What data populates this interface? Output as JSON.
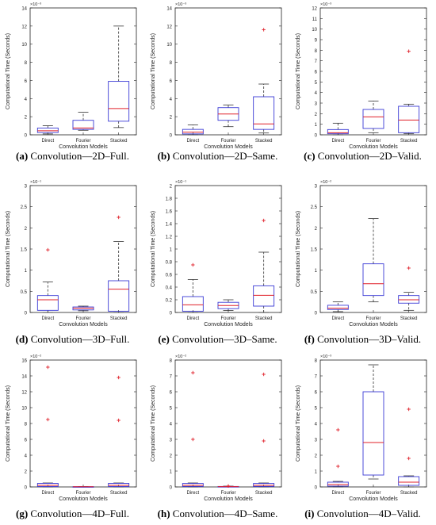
{
  "chart_data": [
    {
      "type": "box",
      "title": "",
      "caption_letter": "(a)",
      "caption_text": "Convolution—2D–Full.",
      "exponent_label": "×10⁻³",
      "xlabel": "Convolution Models",
      "ylabel": "Computational Time (Seconds)",
      "ylim": [
        0,
        14
      ],
      "yticks": [
        "0",
        "2",
        "4",
        "6",
        "8",
        "10",
        "12",
        "14"
      ],
      "categories": [
        "Direct",
        "Fourier",
        "Stacked"
      ],
      "boxes": [
        {
          "min": 0.1,
          "q1": 0.25,
          "median": 0.45,
          "q3": 0.75,
          "max": 1.0,
          "outliers": []
        },
        {
          "min": 0.5,
          "q1": 0.6,
          "median": 0.75,
          "q3": 1.6,
          "max": 2.5,
          "outliers": []
        },
        {
          "min": 0.8,
          "q1": 1.5,
          "median": 2.9,
          "q3": 5.9,
          "max": 12.0,
          "outliers": []
        }
      ]
    },
    {
      "type": "box",
      "title": "",
      "caption_letter": "(b)",
      "caption_text": "Convolution—2D–Same.",
      "exponent_label": "×10⁻³",
      "xlabel": "Convolution Models",
      "ylabel": "Computational Time (Seconds)",
      "ylim": [
        0,
        14
      ],
      "yticks": [
        "0",
        "2",
        "4",
        "6",
        "8",
        "10",
        "12",
        "14"
      ],
      "categories": [
        "Direct",
        "Fourier",
        "Stacked"
      ],
      "boxes": [
        {
          "min": 0.0,
          "q1": 0.1,
          "median": 0.3,
          "q3": 0.6,
          "max": 1.1,
          "outliers": []
        },
        {
          "min": 0.9,
          "q1": 1.6,
          "median": 2.3,
          "q3": 3.0,
          "max": 3.3,
          "outliers": []
        },
        {
          "min": 0.2,
          "q1": 0.6,
          "median": 1.2,
          "q3": 4.2,
          "max": 5.6,
          "outliers": [
            11.6
          ]
        }
      ]
    },
    {
      "type": "box",
      "title": "",
      "caption_letter": "(c)",
      "caption_text": "Convolution—2D–Valid.",
      "exponent_label": "×10⁻³",
      "xlabel": "Convolution Models",
      "ylabel": "Computational Time (Seconds)",
      "ylim": [
        0,
        12
      ],
      "yticks": [
        "0",
        "1",
        "2",
        "3",
        "4",
        "5",
        "6",
        "7",
        "8",
        "9",
        "10",
        "11",
        "12"
      ],
      "categories": [
        "Direct",
        "Fourier",
        "Stacked"
      ],
      "boxes": [
        {
          "min": 0.0,
          "q1": 0.1,
          "median": 0.2,
          "q3": 0.5,
          "max": 1.1,
          "outliers": []
        },
        {
          "min": 0.2,
          "q1": 0.6,
          "median": 1.7,
          "q3": 2.4,
          "max": 3.2,
          "outliers": []
        },
        {
          "min": 0.1,
          "q1": 0.2,
          "median": 1.4,
          "q3": 2.7,
          "max": 2.9,
          "outliers": [
            7.9
          ]
        }
      ]
    },
    {
      "type": "box",
      "title": "",
      "caption_letter": "(d)",
      "caption_text": "Convolution—3D–Full.",
      "exponent_label": "×10⁻¹",
      "xlabel": "Convolution Models",
      "ylabel": "Computational Time (Seconds)",
      "ylim": [
        0,
        3
      ],
      "yticks": [
        "0",
        "0.5",
        "1",
        "1.5",
        "2",
        "2.5",
        "3"
      ],
      "categories": [
        "Direct",
        "Fourier",
        "Stacked"
      ],
      "boxes": [
        {
          "min": 0.0,
          "q1": 0.05,
          "median": 0.3,
          "q3": 0.4,
          "max": 0.72,
          "outliers": [
            1.48
          ]
        },
        {
          "min": 0.04,
          "q1": 0.06,
          "median": 0.1,
          "q3": 0.13,
          "max": 0.15,
          "outliers": []
        },
        {
          "min": 0.0,
          "q1": 0.03,
          "median": 0.55,
          "q3": 0.75,
          "max": 1.68,
          "outliers": [
            2.25
          ]
        }
      ]
    },
    {
      "type": "box",
      "title": "",
      "caption_letter": "(e)",
      "caption_text": "Convolution—3D–Same.",
      "exponent_label": "×10⁻¹",
      "xlabel": "Convolution Models",
      "ylabel": "Computational Time (Seconds)",
      "ylim": [
        0,
        2
      ],
      "yticks": [
        "0",
        "0.2",
        "0.4",
        "0.6",
        "0.8",
        "1",
        "1.2",
        "1.4",
        "1.6",
        "1.8",
        "2"
      ],
      "categories": [
        "Direct",
        "Fourier",
        "Stacked"
      ],
      "boxes": [
        {
          "min": 0.0,
          "q1": 0.02,
          "median": 0.12,
          "q3": 0.25,
          "max": 0.52,
          "outliers": [
            0.75
          ]
        },
        {
          "min": 0.03,
          "q1": 0.06,
          "median": 0.11,
          "q3": 0.16,
          "max": 0.2,
          "outliers": []
        },
        {
          "min": 0.0,
          "q1": 0.1,
          "median": 0.27,
          "q3": 0.42,
          "max": 0.95,
          "outliers": [
            1.45
          ]
        }
      ]
    },
    {
      "type": "box",
      "title": "",
      "caption_letter": "(f)",
      "caption_text": "Convolution—3D–Valid.",
      "exponent_label": "×10⁻²",
      "xlabel": "Convolution Models",
      "ylabel": "Computational Time (Seconds)",
      "ylim": [
        0,
        3
      ],
      "yticks": [
        "0",
        "0.5",
        "1",
        "1.5",
        "2",
        "2.5",
        "3"
      ],
      "categories": [
        "Direct",
        "Fourier",
        "Stacked"
      ],
      "boxes": [
        {
          "min": 0.02,
          "q1": 0.07,
          "median": 0.1,
          "q3": 0.17,
          "max": 0.25,
          "outliers": []
        },
        {
          "min": 0.25,
          "q1": 0.4,
          "median": 0.68,
          "q3": 1.15,
          "max": 2.22,
          "outliers": []
        },
        {
          "min": 0.05,
          "q1": 0.22,
          "median": 0.3,
          "q3": 0.4,
          "max": 0.48,
          "outliers": [
            1.05
          ]
        }
      ]
    },
    {
      "type": "box",
      "title": "",
      "caption_letter": "(g)",
      "caption_text": "Convolution—4D–Full.",
      "exponent_label": "×10⁻²",
      "xlabel": "Convolution Models",
      "ylabel": "Computational Time (Seconds)",
      "ylim": [
        0,
        16
      ],
      "yticks": [
        "0",
        "2",
        "4",
        "6",
        "8",
        "10",
        "12",
        "14",
        "16"
      ],
      "categories": [
        "Direct",
        "Fourier",
        "Stacked"
      ],
      "boxes": [
        {
          "min": 0.0,
          "q1": 0.05,
          "median": 0.2,
          "q3": 0.45,
          "max": 0.5,
          "outliers": [
            8.5,
            15.1
          ]
        },
        {
          "min": 0.0,
          "q1": 0.0,
          "median": 0.02,
          "q3": 0.04,
          "max": 0.05,
          "outliers": []
        },
        {
          "min": 0.0,
          "q1": 0.05,
          "median": 0.2,
          "q3": 0.45,
          "max": 0.5,
          "outliers": [
            8.4,
            13.8
          ]
        }
      ]
    },
    {
      "type": "box",
      "title": "",
      "caption_letter": "(h)",
      "caption_text": "Convolution—4D–Same.",
      "exponent_label": "×10⁻²",
      "xlabel": "Convolution Models",
      "ylabel": "Computational Time (Seconds)",
      "ylim": [
        0,
        8
      ],
      "yticks": [
        "0",
        "1",
        "2",
        "3",
        "4",
        "5",
        "6",
        "7",
        "8"
      ],
      "categories": [
        "Direct",
        "Fourier",
        "Stacked"
      ],
      "boxes": [
        {
          "min": 0.0,
          "q1": 0.03,
          "median": 0.1,
          "q3": 0.22,
          "max": 0.25,
          "outliers": [
            3.0,
            7.2
          ]
        },
        {
          "min": 0.0,
          "q1": 0.0,
          "median": 0.02,
          "q3": 0.03,
          "max": 0.05,
          "outliers": [
            0.06
          ]
        },
        {
          "min": 0.0,
          "q1": 0.03,
          "median": 0.1,
          "q3": 0.22,
          "max": 0.25,
          "outliers": [
            2.9,
            7.1
          ]
        }
      ]
    },
    {
      "type": "box",
      "title": "",
      "caption_letter": "(i)",
      "caption_text": "Convolution—4D–Valid.",
      "exponent_label": "×10⁻³",
      "xlabel": "Convolution Models",
      "ylabel": "Computational Time (Seconds)",
      "ylim": [
        0,
        8
      ],
      "yticks": [
        "0",
        "1",
        "2",
        "3",
        "4",
        "5",
        "6",
        "7",
        "8"
      ],
      "categories": [
        "Direct",
        "Fourier",
        "Stacked"
      ],
      "boxes": [
        {
          "min": 0.0,
          "q1": 0.05,
          "median": 0.15,
          "q3": 0.3,
          "max": 0.35,
          "outliers": [
            1.3,
            3.6
          ]
        },
        {
          "min": 0.5,
          "q1": 0.75,
          "median": 2.8,
          "q3": 6.0,
          "max": 7.7,
          "outliers": []
        },
        {
          "min": 0.0,
          "q1": 0.1,
          "median": 0.3,
          "q3": 0.65,
          "max": 0.7,
          "outliers": [
            1.8,
            4.9
          ]
        }
      ]
    }
  ],
  "colors": {
    "box": "#3a3ad6",
    "median": "#e0202a",
    "whisker": "#333333",
    "outlier": "#e0202a",
    "axis": "#222222"
  }
}
